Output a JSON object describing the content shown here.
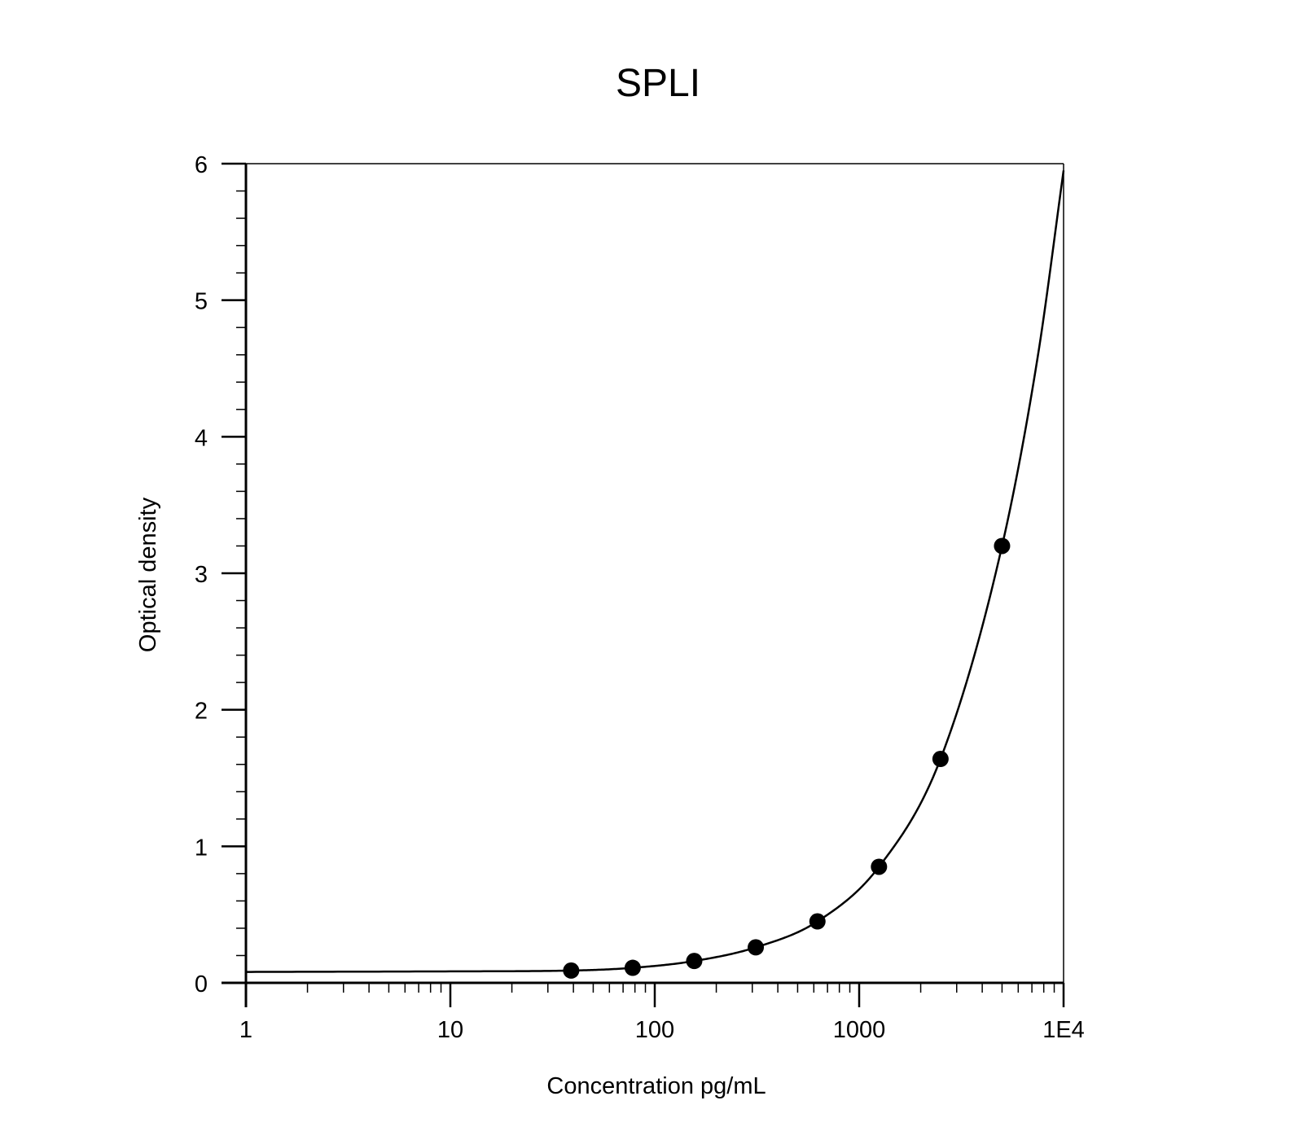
{
  "chart_data": {
    "type": "scatter",
    "title": "SPLI",
    "xlabel": "Concentration pg/mL",
    "ylabel": "Optical density",
    "x_scale": "log",
    "xlim": [
      1,
      10000
    ],
    "ylim": [
      0,
      6
    ],
    "x_ticks": [
      1,
      10,
      100,
      1000,
      10000
    ],
    "x_tick_labels": [
      "1",
      "10",
      "100",
      "1000",
      "1E4"
    ],
    "y_ticks": [
      0,
      1,
      2,
      3,
      4,
      5,
      6
    ],
    "y_tick_labels": [
      "0",
      "1",
      "2",
      "3",
      "4",
      "5",
      "6"
    ],
    "grid": false,
    "series": [
      {
        "x": [
          39,
          78,
          156,
          312,
          625,
          1250,
          2500,
          5000
        ],
        "y": [
          0.09,
          0.11,
          0.16,
          0.26,
          0.45,
          0.85,
          1.64,
          3.2
        ],
        "marker": "filled-circle",
        "color": "#000000"
      }
    ],
    "fit_curve": {
      "type": "line",
      "color": "#000000",
      "x": [
        1,
        10,
        39,
        78,
        156,
        312,
        625,
        1250,
        2500,
        5000,
        7500,
        10000
      ],
      "y": [
        0.08,
        0.084,
        0.09,
        0.11,
        0.16,
        0.26,
        0.45,
        0.85,
        1.64,
        3.2,
        4.6,
        5.95
      ]
    }
  }
}
